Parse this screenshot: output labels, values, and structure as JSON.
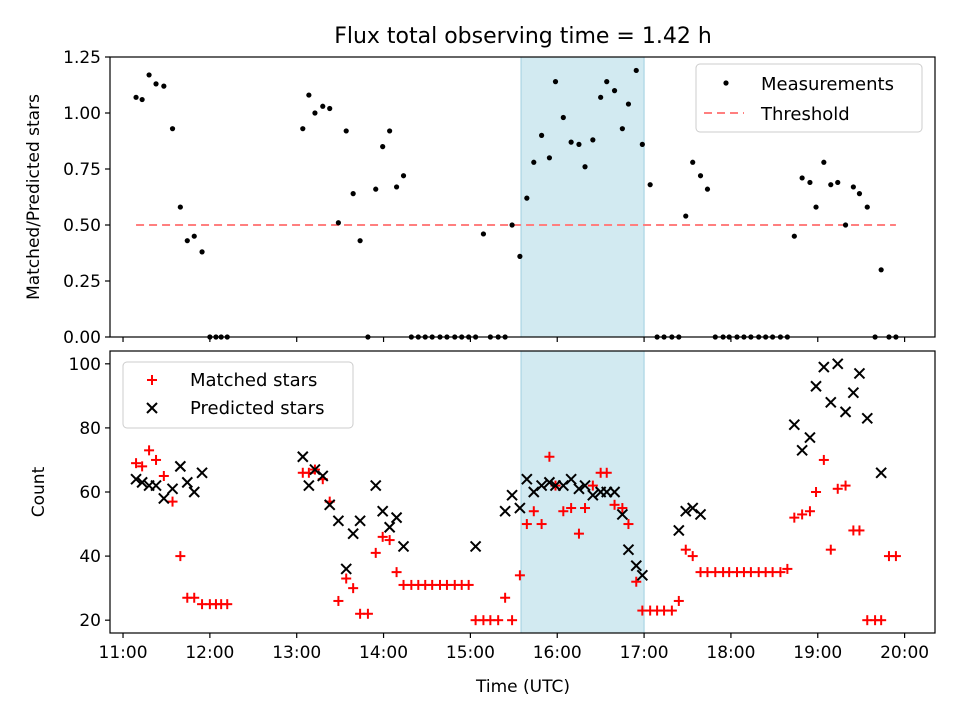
{
  "title": "Flux total observing time = 1.42 h",
  "x_axis": {
    "label": "Time (UTC)",
    "ticks": [
      "11:00",
      "12:00",
      "13:00",
      "14:00",
      "15:00",
      "16:00",
      "17:00",
      "18:00",
      "19:00",
      "20:00"
    ],
    "tick_hours": [
      11,
      12,
      13,
      14,
      15,
      16,
      17,
      18,
      19,
      20
    ],
    "range_hours": [
      10.85,
      20.35
    ]
  },
  "highlight_span": {
    "start": "15:35",
    "end": "17:00",
    "start_hours": 15.583,
    "end_hours": 17.0,
    "color": "#add8e6"
  },
  "chart_data": [
    {
      "type": "scatter",
      "panel": "top",
      "ylabel": "Matched/Predicted stars",
      "ylim": [
        0,
        1.25
      ],
      "yticks": [
        "0.00",
        "0.25",
        "0.50",
        "0.75",
        "1.00",
        "1.25"
      ],
      "ytick_values": [
        0,
        0.25,
        0.5,
        0.75,
        1.0,
        1.25
      ],
      "legend_position": "upper-right",
      "series": [
        {
          "name": "Measurements",
          "marker": "dot",
          "color": "#000000",
          "x": [
            11.15,
            11.22,
            11.3,
            11.38,
            11.47,
            11.57,
            11.66,
            11.74,
            11.82,
            11.91,
            12.0,
            12.07,
            12.13,
            12.2,
            13.07,
            13.14,
            13.21,
            13.3,
            13.38,
            13.48,
            13.57,
            13.65,
            13.73,
            13.82,
            13.91,
            13.99,
            14.07,
            14.15,
            14.23,
            14.32,
            14.4,
            14.48,
            14.56,
            14.65,
            14.73,
            14.82,
            14.9,
            14.98,
            15.06,
            15.15,
            15.23,
            15.32,
            15.4,
            15.48,
            15.57,
            15.65,
            15.73,
            15.82,
            15.91,
            15.98,
            16.07,
            16.16,
            16.25,
            16.32,
            16.41,
            16.5,
            16.57,
            16.66,
            16.75,
            16.82,
            16.91,
            16.98,
            17.07,
            17.15,
            17.23,
            17.32,
            17.4,
            17.48,
            17.56,
            17.65,
            17.73,
            17.82,
            17.91,
            17.98,
            18.07,
            18.15,
            18.23,
            18.32,
            18.4,
            18.48,
            18.57,
            18.65,
            18.73,
            18.82,
            18.91,
            18.98,
            19.07,
            19.15,
            19.23,
            19.32,
            19.41,
            19.48,
            19.57,
            19.66,
            19.73,
            19.82,
            19.9
          ],
          "y": [
            1.07,
            1.06,
            1.17,
            1.13,
            1.12,
            0.93,
            0.58,
            0.43,
            0.45,
            0.38,
            0.0,
            0.0,
            0.0,
            0.0,
            0.93,
            1.08,
            1.0,
            1.03,
            1.02,
            0.51,
            0.92,
            0.64,
            0.43,
            0.0,
            0.66,
            0.85,
            0.92,
            0.67,
            0.72,
            0.0,
            0.0,
            0.0,
            0.0,
            0.0,
            0.0,
            0.0,
            0.0,
            0.0,
            0.0,
            0.46,
            0.0,
            0.0,
            0.0,
            0.5,
            0.36,
            0.62,
            0.78,
            0.9,
            0.8,
            1.14,
            0.98,
            0.87,
            0.86,
            0.76,
            0.88,
            1.07,
            1.14,
            1.1,
            0.93,
            1.04,
            1.19,
            0.86,
            0.68,
            0.0,
            0.0,
            0.0,
            0.0,
            0.54,
            0.78,
            0.72,
            0.66,
            0.0,
            0.0,
            0.0,
            0.0,
            0.0,
            0.0,
            0.0,
            0.0,
            0.0,
            0.0,
            0.0,
            0.45,
            0.71,
            0.69,
            0.58,
            0.78,
            0.68,
            0.69,
            0.5,
            0.67,
            0.64,
            0.58,
            0.0,
            0.3,
            0.0,
            0.0
          ]
        },
        {
          "name": "Threshold",
          "marker": "dashed-line",
          "color": "#ff7f7f",
          "x": [
            11.15,
            19.9
          ],
          "y": [
            0.5,
            0.5
          ]
        }
      ]
    },
    {
      "type": "scatter",
      "panel": "bottom",
      "ylabel": "Count",
      "ylim": [
        16,
        104
      ],
      "yticks": [
        "20",
        "40",
        "60",
        "80",
        "100"
      ],
      "ytick_values": [
        20,
        40,
        60,
        80,
        100
      ],
      "legend_position": "upper-left",
      "series": [
        {
          "name": "Matched stars",
          "marker": "plus",
          "color": "#ff0000",
          "x": [
            11.15,
            11.22,
            11.3,
            11.38,
            11.47,
            11.57,
            11.66,
            11.74,
            11.82,
            11.91,
            12.0,
            12.07,
            12.13,
            12.2,
            13.07,
            13.14,
            13.21,
            13.3,
            13.38,
            13.48,
            13.57,
            13.65,
            13.73,
            13.82,
            13.91,
            13.99,
            14.07,
            14.15,
            14.23,
            14.32,
            14.4,
            14.48,
            14.56,
            14.65,
            14.73,
            14.82,
            14.9,
            14.98,
            15.06,
            15.15,
            15.23,
            15.32,
            15.4,
            15.48,
            15.57,
            15.65,
            15.73,
            15.82,
            15.91,
            15.98,
            16.07,
            16.16,
            16.25,
            16.32,
            16.41,
            16.5,
            16.57,
            16.66,
            16.75,
            16.82,
            16.91,
            16.98,
            17.07,
            17.15,
            17.23,
            17.32,
            17.4,
            17.48,
            17.56,
            17.65,
            17.73,
            17.82,
            17.91,
            17.98,
            18.07,
            18.15,
            18.23,
            18.32,
            18.4,
            18.48,
            18.57,
            18.65,
            18.73,
            18.82,
            18.91,
            18.98,
            19.07,
            19.15,
            19.23,
            19.32,
            19.41,
            19.48,
            19.57,
            19.66,
            19.73,
            19.82,
            19.9
          ],
          "y": [
            69,
            68,
            73,
            70,
            65,
            57,
            40,
            27,
            27,
            25,
            25,
            25,
            25,
            25,
            66,
            66,
            67,
            64,
            57,
            26,
            33,
            30,
            22,
            22,
            41,
            46,
            45,
            35,
            31,
            31,
            31,
            31,
            31,
            31,
            31,
            31,
            31,
            31,
            20,
            20,
            20,
            20,
            27,
            20,
            34,
            50,
            54,
            50,
            71,
            62,
            54,
            55,
            47,
            55,
            62,
            66,
            66,
            56,
            55,
            50,
            32,
            23,
            23,
            23,
            23,
            23,
            26,
            42,
            40,
            35,
            35,
            35,
            35,
            35,
            35,
            35,
            35,
            35,
            35,
            35,
            35,
            36,
            52,
            53,
            54,
            60,
            70,
            42,
            61,
            62,
            48,
            48,
            20,
            20,
            20,
            40,
            40
          ],
          "visible_count": 95
        },
        {
          "name": "Predicted stars",
          "marker": "x",
          "color": "#000000",
          "x": [
            11.15,
            11.22,
            11.3,
            11.38,
            11.47,
            11.57,
            11.66,
            11.74,
            11.82,
            11.91,
            13.07,
            13.14,
            13.21,
            13.3,
            13.38,
            13.48,
            13.57,
            13.65,
            13.73,
            13.91,
            13.99,
            14.07,
            14.15,
            14.23,
            15.06,
            15.4,
            15.48,
            15.57,
            15.65,
            15.73,
            15.82,
            15.91,
            15.98,
            16.07,
            16.16,
            16.25,
            16.32,
            16.41,
            16.5,
            16.57,
            16.66,
            16.75,
            16.82,
            16.91,
            16.98,
            17.4,
            17.48,
            17.56,
            17.65,
            18.73,
            18.82,
            18.91,
            18.98,
            19.07,
            19.15,
            19.23,
            19.32,
            19.41,
            19.48,
            19.57,
            19.73
          ],
          "y": [
            64,
            63,
            62,
            62,
            58,
            61,
            68,
            63,
            60,
            66,
            71,
            62,
            67,
            65,
            56,
            51,
            36,
            47,
            51,
            62,
            54,
            49,
            52,
            43,
            43,
            54,
            59,
            55,
            64,
            60,
            62,
            63,
            62,
            62,
            64,
            61,
            62,
            59,
            60,
            60,
            60,
            53,
            42,
            37,
            34,
            48,
            54,
            55,
            53,
            81,
            73,
            77,
            93,
            99,
            88,
            100,
            85,
            91,
            97,
            83,
            66
          ]
        }
      ]
    }
  ]
}
